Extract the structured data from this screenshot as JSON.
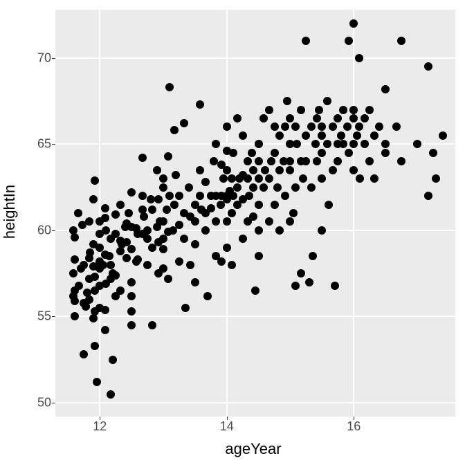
{
  "chart": {
    "type": "scatter",
    "xlabel": "ageYear",
    "ylabel": "heightIn",
    "label_fontsize": 22,
    "tick_fontsize": 18,
    "background_color": "#ebebeb",
    "grid_color": "#ffffff",
    "point_color": "#000000",
    "point_radius": 6,
    "xlim": [
      11.3,
      17.6
    ],
    "ylim": [
      49.2,
      72.8
    ],
    "xticks": [
      12,
      14,
      16
    ],
    "yticks": [
      50,
      55,
      60,
      65,
      70
    ],
    "points": [
      [
        11.58,
        57.5
      ],
      [
        11.58,
        56.2
      ],
      [
        11.58,
        60.0
      ],
      [
        11.6,
        55.0
      ],
      [
        11.6,
        55.9
      ],
      [
        11.6,
        59.6
      ],
      [
        11.6,
        58.3
      ],
      [
        11.6,
        56.5
      ],
      [
        11.66,
        61.0
      ],
      [
        11.67,
        56.8
      ],
      [
        11.7,
        57.8
      ],
      [
        11.72,
        60.3
      ],
      [
        11.75,
        58.0
      ],
      [
        11.75,
        55.8
      ],
      [
        11.75,
        52.8
      ],
      [
        11.78,
        55.6
      ],
      [
        11.8,
        56.4
      ],
      [
        11.83,
        57.2
      ],
      [
        11.83,
        60.5
      ],
      [
        11.83,
        56.0
      ],
      [
        11.83,
        58.4
      ],
      [
        11.85,
        58.7
      ],
      [
        11.9,
        61.8
      ],
      [
        11.9,
        54.9
      ],
      [
        11.9,
        57.9
      ],
      [
        11.9,
        59.2
      ],
      [
        11.92,
        57.3
      ],
      [
        11.92,
        62.9
      ],
      [
        11.92,
        55.3
      ],
      [
        11.92,
        56.5
      ],
      [
        11.92,
        53.3
      ],
      [
        11.95,
        51.2
      ],
      [
        12.0,
        58.2
      ],
      [
        12.0,
        59.0
      ],
      [
        12.0,
        57.8
      ],
      [
        12.0,
        56.8
      ],
      [
        12.0,
        59.8
      ],
      [
        12.0,
        55.5
      ],
      [
        12.0,
        60.5
      ],
      [
        12.05,
        58.0
      ],
      [
        12.08,
        61.3
      ],
      [
        12.08,
        60.7
      ],
      [
        12.08,
        58.6
      ],
      [
        12.08,
        55.4
      ],
      [
        12.08,
        54.2
      ],
      [
        12.1,
        60.0
      ],
      [
        12.1,
        56.9
      ],
      [
        12.15,
        58.5
      ],
      [
        12.17,
        57.2
      ],
      [
        12.17,
        59.5
      ],
      [
        12.17,
        58.0
      ],
      [
        12.17,
        50.5
      ],
      [
        12.2,
        52.5
      ],
      [
        12.2,
        57.5
      ],
      [
        12.25,
        59.8
      ],
      [
        12.25,
        57.4
      ],
      [
        12.25,
        60.9
      ],
      [
        12.25,
        56.2
      ],
      [
        12.33,
        56.5
      ],
      [
        12.33,
        61.5
      ],
      [
        12.33,
        58.8
      ],
      [
        12.33,
        59.4
      ],
      [
        12.35,
        59.2
      ],
      [
        12.4,
        60.2
      ],
      [
        12.42,
        58.4
      ],
      [
        12.42,
        59.3
      ],
      [
        12.42,
        60.4
      ],
      [
        12.45,
        61.0
      ],
      [
        12.5,
        60.2
      ],
      [
        12.5,
        58.9
      ],
      [
        12.5,
        54.5
      ],
      [
        12.5,
        62.2
      ],
      [
        12.5,
        57.0
      ],
      [
        12.5,
        55.3
      ],
      [
        12.5,
        56.2
      ],
      [
        12.58,
        58.2
      ],
      [
        12.58,
        60.1
      ],
      [
        12.6,
        59.8
      ],
      [
        12.6,
        58.3
      ],
      [
        12.67,
        64.2
      ],
      [
        12.67,
        59.8
      ],
      [
        12.67,
        61.2
      ],
      [
        12.67,
        62.0
      ],
      [
        12.7,
        60.8
      ],
      [
        12.75,
        60.0
      ],
      [
        12.75,
        58.0
      ],
      [
        12.75,
        59.5
      ],
      [
        12.8,
        61.8
      ],
      [
        12.83,
        61.2
      ],
      [
        12.83,
        54.5
      ],
      [
        12.83,
        59.0
      ],
      [
        12.9,
        63.5
      ],
      [
        12.9,
        60.2
      ],
      [
        12.92,
        57.5
      ],
      [
        12.92,
        61.8
      ],
      [
        12.92,
        59.3
      ],
      [
        12.95,
        60.5
      ],
      [
        13.0,
        60.5
      ],
      [
        13.0,
        63.0
      ],
      [
        13.0,
        57.8
      ],
      [
        13.0,
        58.9
      ],
      [
        13.0,
        62.5
      ],
      [
        13.0,
        59.5
      ],
      [
        13.05,
        61.2
      ],
      [
        13.08,
        64.3
      ],
      [
        13.08,
        59.9
      ],
      [
        13.08,
        57.2
      ],
      [
        13.1,
        68.3
      ],
      [
        13.1,
        62.0
      ],
      [
        13.15,
        60.0
      ],
      [
        13.17,
        65.8
      ],
      [
        13.17,
        61.5
      ],
      [
        13.2,
        63.2
      ],
      [
        13.25,
        62.0
      ],
      [
        13.25,
        60.3
      ],
      [
        13.25,
        58.2
      ],
      [
        13.33,
        66.2
      ],
      [
        13.33,
        61.0
      ],
      [
        13.33,
        59.5
      ],
      [
        13.35,
        55.5
      ],
      [
        13.4,
        62.5
      ],
      [
        13.42,
        58.0
      ],
      [
        13.42,
        60.8
      ],
      [
        13.5,
        60.5
      ],
      [
        13.5,
        57.0
      ],
      [
        13.5,
        59.2
      ],
      [
        13.5,
        61.5
      ],
      [
        13.58,
        67.3
      ],
      [
        13.58,
        62.0
      ],
      [
        13.58,
        63.5
      ],
      [
        13.6,
        61.2
      ],
      [
        13.67,
        60.0
      ],
      [
        13.67,
        62.8
      ],
      [
        13.67,
        61.0
      ],
      [
        13.7,
        56.2
      ],
      [
        13.75,
        62.0
      ],
      [
        13.75,
        61.3
      ],
      [
        13.8,
        64.0
      ],
      [
        13.83,
        58.5
      ],
      [
        13.83,
        65.0
      ],
      [
        13.83,
        60.5
      ],
      [
        13.83,
        62.0
      ],
      [
        13.9,
        61.5
      ],
      [
        13.92,
        63.8
      ],
      [
        13.92,
        62.0
      ],
      [
        13.92,
        58.2
      ],
      [
        13.95,
        63.0
      ],
      [
        14.0,
        61.8
      ],
      [
        14.0,
        63.5
      ],
      [
        14.0,
        62.0
      ],
      [
        14.0,
        64.6
      ],
      [
        14.0,
        59.0
      ],
      [
        14.0,
        60.5
      ],
      [
        14.0,
        66.0
      ],
      [
        14.05,
        62.3
      ],
      [
        14.08,
        63.0
      ],
      [
        14.08,
        61.0
      ],
      [
        14.08,
        58.0
      ],
      [
        14.1,
        64.5
      ],
      [
        14.1,
        62.0
      ],
      [
        14.17,
        61.5
      ],
      [
        14.17,
        62.5
      ],
      [
        14.17,
        66.5
      ],
      [
        14.2,
        63.0
      ],
      [
        14.25,
        59.5
      ],
      [
        14.25,
        63.2
      ],
      [
        14.25,
        61.8
      ],
      [
        14.25,
        65.5
      ],
      [
        14.33,
        63.0
      ],
      [
        14.33,
        60.5
      ],
      [
        14.33,
        64.0
      ],
      [
        14.35,
        62.0
      ],
      [
        14.4,
        64.5
      ],
      [
        14.42,
        60.8
      ],
      [
        14.42,
        62.5
      ],
      [
        14.42,
        63.5
      ],
      [
        14.45,
        56.5
      ],
      [
        14.5,
        65.0
      ],
      [
        14.5,
        61.5
      ],
      [
        14.5,
        63.0
      ],
      [
        14.5,
        60.0
      ],
      [
        14.5,
        58.5
      ],
      [
        14.5,
        64.0
      ],
      [
        14.58,
        62.5
      ],
      [
        14.58,
        66.5
      ],
      [
        14.6,
        63.5
      ],
      [
        14.67,
        67.0
      ],
      [
        14.67,
        63.0
      ],
      [
        14.67,
        60.5
      ],
      [
        14.7,
        64.0
      ],
      [
        14.75,
        64.5
      ],
      [
        14.75,
        61.5
      ],
      [
        14.75,
        66.0
      ],
      [
        14.8,
        62.5
      ],
      [
        14.83,
        63.5
      ],
      [
        14.83,
        65.5
      ],
      [
        14.83,
        60.0
      ],
      [
        14.9,
        64.0
      ],
      [
        14.92,
        66.0
      ],
      [
        14.92,
        62.0
      ],
      [
        14.95,
        67.5
      ],
      [
        15.0,
        63.5
      ],
      [
        15.0,
        65.0
      ],
      [
        15.0,
        60.5
      ],
      [
        15.0,
        66.5
      ],
      [
        15.0,
        64.0
      ],
      [
        15.05,
        61.0
      ],
      [
        15.08,
        62.5
      ],
      [
        15.08,
        66.0
      ],
      [
        15.08,
        56.8
      ],
      [
        15.1,
        65.0
      ],
      [
        15.17,
        64.0
      ],
      [
        15.17,
        67.0
      ],
      [
        15.17,
        57.5
      ],
      [
        15.2,
        63.0
      ],
      [
        15.25,
        65.5
      ],
      [
        15.25,
        64.0
      ],
      [
        15.25,
        71.0
      ],
      [
        15.3,
        57.0
      ],
      [
        15.33,
        66.0
      ],
      [
        15.33,
        62.5
      ],
      [
        15.35,
        58.5
      ],
      [
        15.4,
        65.0
      ],
      [
        15.42,
        66.5
      ],
      [
        15.42,
        64.0
      ],
      [
        15.45,
        67.0
      ],
      [
        15.5,
        65.5
      ],
      [
        15.5,
        60.0
      ],
      [
        15.5,
        64.5
      ],
      [
        15.5,
        63.0
      ],
      [
        15.5,
        66.0
      ],
      [
        15.58,
        65.0
      ],
      [
        15.58,
        67.5
      ],
      [
        15.6,
        61.5
      ],
      [
        15.67,
        66.0
      ],
      [
        15.67,
        63.5
      ],
      [
        15.7,
        56.8
      ],
      [
        15.75,
        65.0
      ],
      [
        15.75,
        66.5
      ],
      [
        15.75,
        64.0
      ],
      [
        15.8,
        65.5
      ],
      [
        15.83,
        67.0
      ],
      [
        15.83,
        65.0
      ],
      [
        15.9,
        66.0
      ],
      [
        15.92,
        71.0
      ],
      [
        15.92,
        64.5
      ],
      [
        16.0,
        72.0
      ],
      [
        16.0,
        65.0
      ],
      [
        16.0,
        66.5
      ],
      [
        16.0,
        63.5
      ],
      [
        16.0,
        67.0
      ],
      [
        16.05,
        65.5
      ],
      [
        16.08,
        70.0
      ],
      [
        16.08,
        66.0
      ],
      [
        16.1,
        63.0
      ],
      [
        16.17,
        65.0
      ],
      [
        16.17,
        66.5
      ],
      [
        16.25,
        64.0
      ],
      [
        16.25,
        67.0
      ],
      [
        16.33,
        65.5
      ],
      [
        16.33,
        63.0
      ],
      [
        16.4,
        66.0
      ],
      [
        16.5,
        64.5
      ],
      [
        16.5,
        65.0
      ],
      [
        16.5,
        68.2
      ],
      [
        16.67,
        66.0
      ],
      [
        16.75,
        71.0
      ],
      [
        16.75,
        64.0
      ],
      [
        17.0,
        65.0
      ],
      [
        17.17,
        69.5
      ],
      [
        17.17,
        62.0
      ],
      [
        17.25,
        64.5
      ],
      [
        17.3,
        63.0
      ],
      [
        17.4,
        65.5
      ]
    ]
  }
}
